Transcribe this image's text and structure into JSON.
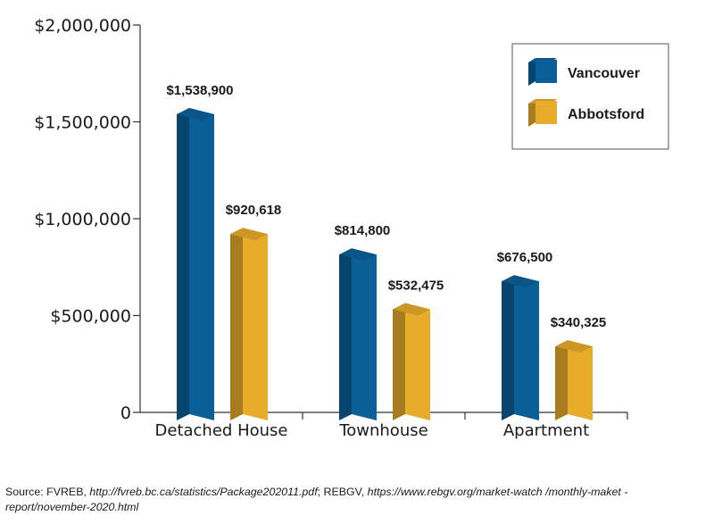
{
  "chart_data": {
    "type": "bar",
    "categories": [
      "Detached House",
      "Townhouse",
      "Apartment"
    ],
    "series": [
      {
        "name": "Vancouver",
        "values": [
          1538900,
          814800,
          676500
        ],
        "labels": [
          "$1,538,900",
          "$814,800",
          "$676,500"
        ],
        "color": "#0b5f99"
      },
      {
        "name": "Abbotsford",
        "values": [
          920618,
          532475,
          340325
        ],
        "labels": [
          "$920,618",
          "$532,475",
          "$340,325"
        ],
        "color": "#e8ac2c"
      }
    ],
    "y_ticks": [
      0,
      500000,
      1000000,
      1500000,
      2000000
    ],
    "y_tick_labels": [
      "0",
      "$500,000",
      "$1,000,000",
      "$1,500,000",
      "$2,000,000"
    ],
    "ylim": [
      0,
      2000000
    ],
    "legend_position": "top-right",
    "grid": false,
    "style": "3d-bars"
  },
  "source": {
    "prefix": "Source: FVREB, ",
    "url1": "http://fvreb.bc.ca/statistics/Package202011.pdf",
    "middle": "; REBGV, ",
    "url2": "https://www.rebgv.org/market-watch /monthly-maket -report/november-2020.html"
  }
}
